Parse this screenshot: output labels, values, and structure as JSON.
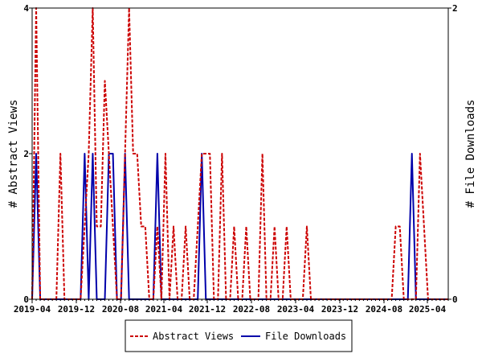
{
  "chart_data": {
    "type": "line",
    "x_labels": [
      "2019-04",
      "2019-12",
      "2020-08",
      "2021-04",
      "2021-12",
      "2022-08",
      "2023-04",
      "2023-12",
      "2024-08",
      "2025-04"
    ],
    "y_left_label": "# Abstract Views",
    "y_right_label": "# File Downloads",
    "y_left_ticks": [
      "0",
      "2",
      "4"
    ],
    "y_right_ticks": [
      "0",
      "2"
    ],
    "y_left_lim": [
      0,
      4
    ],
    "y_right_lim": [
      0,
      2
    ],
    "legend_placement": "bottom",
    "series": [
      {
        "name": "Abstract Views",
        "axis": "left",
        "color": "#cc0000",
        "style": "dashed",
        "values": [
          0,
          4,
          0,
          0,
          0,
          0,
          0,
          2,
          0,
          0,
          0,
          0,
          0,
          1,
          2,
          4,
          1,
          1,
          3,
          2,
          1,
          0,
          0,
          2,
          4,
          2,
          2,
          1,
          1,
          0,
          0,
          1,
          0,
          2,
          0,
          1,
          0,
          0,
          1,
          0,
          0,
          1,
          2,
          2,
          2,
          0,
          0,
          2,
          0,
          0,
          1,
          0,
          0,
          1,
          0,
          0,
          0,
          2,
          0,
          0,
          1,
          0,
          0,
          1,
          0,
          0,
          0,
          0,
          1,
          0,
          0,
          0,
          0,
          0,
          0,
          0,
          0,
          0,
          0,
          0,
          0,
          0,
          0,
          0,
          0,
          0,
          0,
          0,
          0,
          0,
          1,
          1,
          0,
          0,
          0,
          0,
          2,
          1,
          0,
          0,
          0,
          0,
          0,
          0
        ]
      },
      {
        "name": "File Downloads",
        "axis": "right",
        "color": "#0000aa",
        "style": "solid",
        "values": [
          0,
          1,
          0,
          0,
          0,
          0,
          0,
          0,
          0,
          0,
          0,
          0,
          0,
          1,
          0,
          1,
          0,
          0,
          0,
          1,
          1,
          0,
          0,
          1,
          0,
          0,
          0,
          0,
          0,
          0,
          0,
          1,
          0,
          0,
          0,
          0,
          0,
          0,
          0,
          0,
          0,
          0,
          1,
          0,
          0,
          0,
          0,
          0,
          0,
          0,
          0,
          0,
          0,
          0,
          0,
          0,
          0,
          0,
          0,
          0,
          0,
          0,
          0,
          0,
          0,
          0,
          0,
          0,
          0,
          0,
          0,
          0,
          0,
          0,
          0,
          0,
          0,
          0,
          0,
          0,
          0,
          0,
          0,
          0,
          0,
          0,
          0,
          0,
          0,
          0,
          0,
          0,
          0,
          0,
          1,
          0,
          0,
          0,
          0,
          0,
          0,
          0,
          0,
          0
        ]
      }
    ]
  }
}
